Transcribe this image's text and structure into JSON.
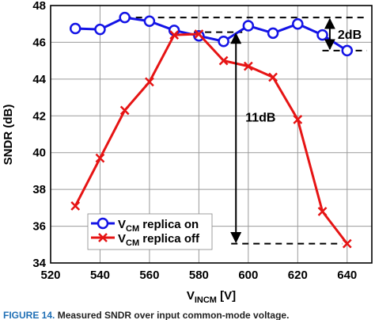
{
  "chart_data": {
    "type": "line",
    "x": [
      530,
      540,
      550,
      560,
      570,
      580,
      590,
      600,
      610,
      620,
      630,
      640
    ],
    "series": [
      {
        "name": "V_CM replica on",
        "label_main": "V",
        "label_sub": "CM",
        "label_rest": " replica on",
        "color": "#1414e6",
        "marker": "circle",
        "values": [
          46.75,
          46.7,
          47.35,
          47.15,
          46.65,
          46.35,
          46.05,
          46.9,
          46.5,
          47.0,
          46.4,
          45.55
        ]
      },
      {
        "name": "V_CM replica off",
        "label_main": "V",
        "label_sub": "CM",
        "label_rest": " replica off",
        "color": "#e61414",
        "marker": "x",
        "values": [
          37.1,
          39.7,
          42.3,
          43.85,
          46.4,
          46.45,
          45.0,
          44.7,
          44.1,
          41.8,
          36.8,
          35.05
        ]
      }
    ],
    "xlim": [
      520,
      650
    ],
    "ylim": [
      34,
      48
    ],
    "xticks": [
      520,
      540,
      560,
      580,
      600,
      620,
      640
    ],
    "yticks": [
      34,
      36,
      38,
      40,
      42,
      44,
      46,
      48
    ],
    "xlabel_main": "V",
    "xlabel_sub": "INCM",
    "xlabel_rest": " [V]",
    "ylabel": "SNDR (dB)",
    "grid": true,
    "legend_position": "bottom-left",
    "annotations": [
      {
        "text": "2dB",
        "value_top": 47.35,
        "value_bottom": 45.55,
        "arrow_x": 633
      },
      {
        "text": "11dB",
        "value_top": 46.55,
        "value_bottom": 35.05,
        "arrow_x": 595
      }
    ]
  },
  "caption": {
    "figure_label": "FIGURE 14.",
    "text": " Measured SNDR over input common-mode voltage."
  }
}
